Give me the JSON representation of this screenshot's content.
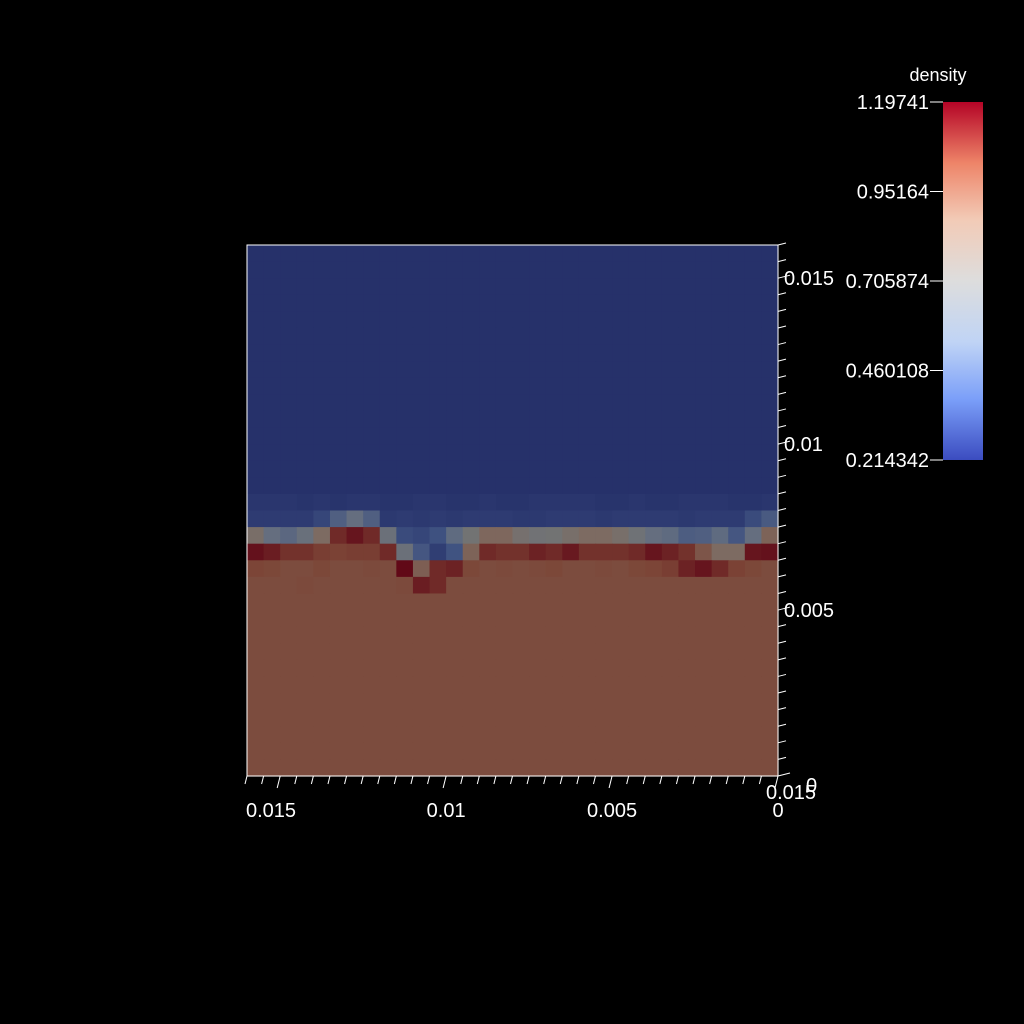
{
  "chart_data": {
    "type": "heatmap",
    "scalar_title": "density",
    "x": {
      "range": [
        0.016,
        0
      ],
      "reversed": true,
      "major_ticks": [
        0.015,
        0.01,
        0.005,
        0
      ],
      "tick_labels": [
        "0.015",
        "0.01",
        "0.005",
        "0"
      ],
      "minor_step": 0.0005,
      "corner_label": "0.015"
    },
    "y": {
      "range": [
        0,
        0.016
      ],
      "major_ticks": [
        0,
        0.005,
        0.01,
        0.015
      ],
      "tick_labels": [
        "0",
        "0.005",
        "0.01",
        "0.015"
      ],
      "minor_step": 0.0005
    },
    "colorbar": {
      "min": 0.214342,
      "max": 1.19741,
      "tick_values": [
        1.19741,
        0.95164,
        0.705874,
        0.460108,
        0.214342
      ],
      "tick_labels": [
        "1.19741",
        "0.95164",
        "0.705874",
        "0.460108",
        "0.214342"
      ],
      "colormap": [
        "#3b4cc0",
        "#7b9ff9",
        "#c0d4f5",
        "#dddddd",
        "#f2cbb7",
        "#ee8468",
        "#b40426"
      ]
    },
    "grid": {
      "columns": 32,
      "rows": 32,
      "heavy_fluid_density": 1.0,
      "light_fluid_density": 0.25,
      "interface_rows": [
        [
          0.25,
          0.25,
          0.25,
          0.25,
          0.25,
          0.25,
          0.25,
          0.25,
          0.25,
          0.25,
          0.25,
          0.25,
          0.25,
          0.25,
          0.25,
          0.25,
          0.25,
          0.25,
          0.25,
          0.25,
          0.25,
          0.25,
          0.25,
          0.25,
          0.25,
          0.25,
          0.25,
          0.25,
          0.25,
          0.25,
          0.25,
          0.25
        ],
        [
          0.27,
          0.27,
          0.27,
          0.26,
          0.27,
          0.26,
          0.27,
          0.27,
          0.26,
          0.26,
          0.27,
          0.27,
          0.26,
          0.26,
          0.27,
          0.26,
          0.26,
          0.27,
          0.27,
          0.27,
          0.27,
          0.26,
          0.26,
          0.27,
          0.26,
          0.26,
          0.27,
          0.27,
          0.27,
          0.26,
          0.26,
          0.27
        ],
        [
          0.29,
          0.29,
          0.29,
          0.29,
          0.33,
          0.45,
          0.55,
          0.45,
          0.28,
          0.29,
          0.28,
          0.29,
          0.28,
          0.29,
          0.29,
          0.29,
          0.28,
          0.28,
          0.29,
          0.29,
          0.29,
          0.28,
          0.29,
          0.29,
          0.29,
          0.29,
          0.28,
          0.29,
          0.29,
          0.29,
          0.35,
          0.42
        ],
        [
          0.8,
          0.55,
          0.5,
          0.6,
          0.85,
          1.1,
          1.15,
          1.1,
          0.62,
          0.35,
          0.33,
          0.37,
          0.52,
          0.7,
          0.88,
          0.88,
          0.75,
          0.68,
          0.7,
          0.78,
          0.85,
          0.85,
          0.78,
          0.66,
          0.55,
          0.52,
          0.44,
          0.45,
          0.52,
          0.4,
          0.55,
          0.9
        ],
        [
          1.16,
          1.13,
          1.08,
          1.08,
          1.05,
          1.04,
          1.05,
          1.05,
          1.1,
          0.62,
          0.4,
          0.3,
          0.38,
          0.9,
          1.1,
          1.08,
          1.08,
          1.12,
          1.1,
          1.14,
          1.08,
          1.08,
          1.08,
          1.1,
          1.15,
          1.12,
          1.08,
          0.96,
          0.85,
          0.85,
          1.15,
          1.16
        ],
        [
          1.03,
          1.02,
          1.0,
          1.0,
          1.02,
          1.0,
          1.0,
          1.01,
          1.0,
          1.18,
          0.92,
          1.1,
          1.12,
          1.02,
          1.0,
          1.01,
          1.0,
          1.01,
          1.02,
          1.0,
          1.0,
          1.01,
          1.0,
          1.02,
          1.03,
          1.05,
          1.12,
          1.15,
          1.1,
          1.04,
          1.02,
          1.0
        ],
        [
          1.0,
          1.0,
          1.0,
          1.01,
          1.0,
          1.0,
          1.0,
          1.0,
          1.0,
          1.01,
          1.13,
          1.1,
          1.0,
          1.0,
          1.0,
          1.0,
          1.0,
          1.0,
          1.0,
          1.0,
          1.0,
          1.0,
          1.0,
          1.0,
          1.0,
          1.0,
          1.0,
          1.0,
          1.0,
          1.0,
          1.0,
          1.0
        ]
      ],
      "interface_start_row": 14
    }
  }
}
